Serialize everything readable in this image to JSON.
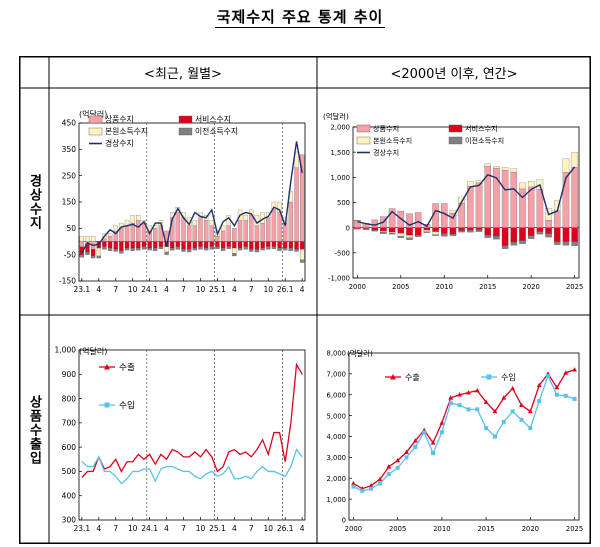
{
  "title": "국제수지 주요 통계 추이",
  "headers": {
    "left": "<최근, 월별>",
    "right": "<2000년 이후, 연간>"
  },
  "row_labels": {
    "top": "경상수지",
    "bottom": "상품수출입"
  },
  "chart_data": [
    {
      "id": "monthly-current",
      "type": "bar",
      "unit_label": "(억달러)",
      "x": [
        "23.1",
        "23.2",
        "23.3",
        "23.4",
        "23.5",
        "23.6",
        "23.7",
        "23.8",
        "23.9",
        "23.10",
        "23.11",
        "23.12",
        "24.1",
        "24.2",
        "24.3",
        "24.4",
        "24.5",
        "24.6",
        "24.7",
        "24.8",
        "24.9",
        "24.10",
        "24.11",
        "24.12",
        "25.1",
        "25.2",
        "25.3",
        "25.4",
        "25.5",
        "25.6",
        "25.7",
        "25.8",
        "25.9",
        "25.10",
        "25.11",
        "25.12",
        "26.1",
        "26.2",
        "26.3",
        "26.4"
      ],
      "x_ticks": [
        "23.1",
        "4",
        "7",
        "10",
        "24.1",
        "4",
        "7",
        "10",
        "25.1",
        "4",
        "7",
        "10",
        "26.1",
        "4"
      ],
      "ylim": [
        -150,
        450
      ],
      "y_ticks": [
        -150,
        -50,
        50,
        150,
        250,
        350,
        450
      ],
      "grid": false,
      "year_dividers": [
        "24.1",
        "25.1",
        "26.1"
      ],
      "legend": [
        "상품수지",
        "서비스수지",
        "본원소득수지",
        "이전소득수지",
        "경상수지"
      ],
      "colors": {
        "goods": "#f4a0a6",
        "services": "#e0001b",
        "primary": "#fff2c0",
        "secondary": "#808080",
        "current": "#1f2f6e"
      },
      "series": [
        {
          "name": "상품수지",
          "values": [
            -20,
            -10,
            -30,
            0,
            10,
            20,
            40,
            50,
            60,
            70,
            80,
            70,
            40,
            50,
            60,
            40,
            90,
            110,
            90,
            60,
            60,
            90,
            80,
            60,
            20,
            40,
            60,
            50,
            80,
            80,
            100,
            60,
            70,
            90,
            120,
            110,
            70,
            150,
            280,
            330
          ]
        },
        {
          "name": "서비스수지",
          "values": [
            -30,
            -30,
            -25,
            -25,
            -20,
            -25,
            -30,
            -35,
            -25,
            -25,
            -25,
            -20,
            -25,
            -25,
            -20,
            -20,
            -25,
            -20,
            -30,
            -30,
            -25,
            -20,
            -25,
            -20,
            -20,
            -25,
            -20,
            -25,
            -25,
            -20,
            -30,
            -30,
            -25,
            -20,
            -20,
            -25,
            -25,
            -25,
            -30,
            -30
          ]
        },
        {
          "name": "본원소득수지",
          "values": [
            20,
            20,
            20,
            -30,
            20,
            10,
            20,
            20,
            20,
            30,
            20,
            10,
            20,
            10,
            20,
            -20,
            20,
            20,
            20,
            30,
            20,
            20,
            20,
            20,
            20,
            20,
            40,
            -20,
            40,
            20,
            20,
            40,
            40,
            20,
            30,
            40,
            20,
            40,
            60,
            -40
          ]
        },
        {
          "name": "이전소득수지",
          "values": [
            -10,
            -10,
            -8,
            -8,
            -10,
            -10,
            -8,
            -10,
            -8,
            -10,
            -8,
            -10,
            -8,
            -10,
            -8,
            -10,
            -8,
            -10,
            -8,
            -10,
            -8,
            -10,
            -8,
            -10,
            -8,
            -10,
            -8,
            -10,
            -8,
            -10,
            -8,
            -10,
            -8,
            -10,
            -8,
            -10,
            -8,
            -10,
            -8,
            -10
          ]
        },
        {
          "name": "경상수지",
          "values": [
            -43,
            -5,
            -15,
            -10,
            20,
            45,
            30,
            55,
            60,
            65,
            55,
            75,
            30,
            70,
            70,
            -20,
            85,
            125,
            90,
            65,
            110,
            95,
            90,
            120,
            28,
            75,
            90,
            60,
            100,
            110,
            105,
            70,
            85,
            95,
            130,
            120,
            60,
            230,
            380,
            260
          ]
        }
      ]
    },
    {
      "id": "annual-current",
      "type": "bar",
      "unit_label": "(억달러)",
      "x": [
        2000,
        2001,
        2002,
        2003,
        2004,
        2005,
        2006,
        2007,
        2008,
        2009,
        2010,
        2011,
        2012,
        2013,
        2014,
        2015,
        2016,
        2017,
        2018,
        2019,
        2020,
        2021,
        2022,
        2023,
        2024,
        2025
      ],
      "x_ticks": [
        2000,
        2005,
        2010,
        2015,
        2020,
        2025
      ],
      "ylim": [
        -1000,
        2000
      ],
      "y_ticks": [
        -1000,
        -500,
        0,
        500,
        1000,
        1500,
        2000
      ],
      "grid": false,
      "legend": [
        "상품수지",
        "서비스수지",
        "본원소득수지",
        "이전소득수지",
        "경상수지"
      ],
      "colors": {
        "goods": "#f4a0a6",
        "services": "#e0001b",
        "primary": "#fff2c0",
        "secondary": "#808080",
        "current": "#1f2f6e"
      },
      "series": [
        {
          "name": "상품수지",
          "values": [
            150,
            90,
            140,
            220,
            380,
            330,
            280,
            300,
            70,
            480,
            480,
            290,
            490,
            820,
            890,
            1220,
            1180,
            1140,
            1100,
            770,
            810,
            760,
            150,
            340,
            1100,
            1200
          ]
        },
        {
          "name": "서비스수지",
          "values": [
            -20,
            -20,
            -50,
            -70,
            -90,
            -110,
            -150,
            -150,
            -50,
            -80,
            -120,
            -130,
            -60,
            -50,
            -40,
            -150,
            -170,
            -360,
            -290,
            -260,
            -160,
            -80,
            -120,
            -280,
            -280,
            -280
          ]
        },
        {
          "name": "본원소득수지",
          "values": [
            -20,
            -10,
            20,
            -20,
            -20,
            -60,
            -50,
            0,
            -30,
            -60,
            -10,
            60,
            120,
            90,
            40,
            50,
            40,
            60,
            70,
            120,
            110,
            190,
            230,
            200,
            270,
            300
          ]
        },
        {
          "name": "이전소득수지",
          "values": [
            0,
            -10,
            -20,
            -30,
            -20,
            -30,
            -40,
            -30,
            -20,
            -20,
            -40,
            -30,
            -30,
            -40,
            -40,
            -50,
            -60,
            -60,
            -60,
            -60,
            -60,
            -50,
            -70,
            -60,
            -70,
            -80
          ]
        },
        {
          "name": "경상수지",
          "values": [
            120,
            80,
            50,
            110,
            320,
            180,
            50,
            120,
            30,
            340,
            280,
            190,
            510,
            810,
            840,
            1050,
            990,
            750,
            770,
            600,
            760,
            850,
            260,
            330,
            990,
            1210
          ]
        }
      ]
    },
    {
      "id": "monthly-goods-trade",
      "type": "line",
      "unit_label": "(억달러)",
      "x": [
        "23.1",
        "23.2",
        "23.3",
        "23.4",
        "23.5",
        "23.6",
        "23.7",
        "23.8",
        "23.9",
        "23.10",
        "23.11",
        "23.12",
        "24.1",
        "24.2",
        "24.3",
        "24.4",
        "24.5",
        "24.6",
        "24.7",
        "24.8",
        "24.9",
        "24.10",
        "24.11",
        "24.12",
        "25.1",
        "25.2",
        "25.3",
        "25.4",
        "25.5",
        "25.6",
        "25.7",
        "25.8",
        "25.9",
        "25.10",
        "25.11",
        "25.12",
        "26.1",
        "26.2",
        "26.3",
        "26.4"
      ],
      "x_ticks": [
        "23.1",
        "4",
        "7",
        "10",
        "24.1",
        "4",
        "7",
        "10",
        "25.1",
        "4",
        "7",
        "10",
        "26.1",
        "4"
      ],
      "ylim": [
        300,
        1000
      ],
      "y_ticks": [
        300,
        400,
        500,
        600,
        700,
        800,
        900,
        1000
      ],
      "grid": false,
      "year_dividers": [
        "24.1",
        "25.1",
        "26.1"
      ],
      "legend": [
        "수출",
        "수입"
      ],
      "colors": {
        "export": "#e0001b",
        "import": "#5ac0ef"
      },
      "series": [
        {
          "name": "수출",
          "values": [
            475,
            500,
            500,
            560,
            510,
            520,
            550,
            500,
            540,
            540,
            570,
            550,
            570,
            530,
            570,
            550,
            590,
            580,
            560,
            560,
            580,
            560,
            590,
            560,
            500,
            520,
            580,
            590,
            570,
            580,
            560,
            590,
            630,
            570,
            660,
            660,
            540,
            700,
            940,
            900
          ]
        },
        {
          "name": "수입",
          "values": [
            540,
            520,
            520,
            560,
            500,
            500,
            480,
            450,
            470,
            500,
            500,
            510,
            510,
            460,
            510,
            520,
            520,
            510,
            500,
            500,
            480,
            470,
            490,
            500,
            480,
            490,
            520,
            470,
            470,
            480,
            470,
            500,
            520,
            500,
            500,
            490,
            480,
            520,
            590,
            560
          ]
        }
      ]
    },
    {
      "id": "annual-goods-trade",
      "type": "line",
      "unit_label": "(억달러)",
      "x": [
        2000,
        2001,
        2002,
        2003,
        2004,
        2005,
        2006,
        2007,
        2008,
        2009,
        2010,
        2011,
        2012,
        2013,
        2014,
        2015,
        2016,
        2017,
        2018,
        2019,
        2020,
        2021,
        2022,
        2023,
        2024,
        2025
      ],
      "x_ticks": [
        2000,
        2005,
        2010,
        2015,
        2020,
        2025
      ],
      "ylim": [
        0,
        8000
      ],
      "y_ticks": [
        0,
        1000,
        2000,
        3000,
        4000,
        5000,
        6000,
        7000,
        8000
      ],
      "grid": false,
      "legend": [
        "수출",
        "수입"
      ],
      "colors": {
        "export": "#e0001b",
        "import": "#5ac0ef"
      },
      "series": [
        {
          "name": "수출",
          "values": [
            1750,
            1500,
            1650,
            1950,
            2550,
            2850,
            3250,
            3800,
            4300,
            3700,
            4650,
            5850,
            6000,
            6100,
            6200,
            5650,
            5200,
            5850,
            6300,
            5500,
            5200,
            6450,
            7000,
            6350,
            7050,
            7200
          ]
        },
        {
          "name": "수입",
          "values": [
            1600,
            1400,
            1500,
            1750,
            2200,
            2500,
            3000,
            3500,
            4200,
            3200,
            4200,
            5600,
            5500,
            5300,
            5300,
            4400,
            4000,
            4700,
            5200,
            4800,
            4400,
            5700,
            6900,
            6000,
            5950,
            5800
          ]
        }
      ]
    }
  ]
}
